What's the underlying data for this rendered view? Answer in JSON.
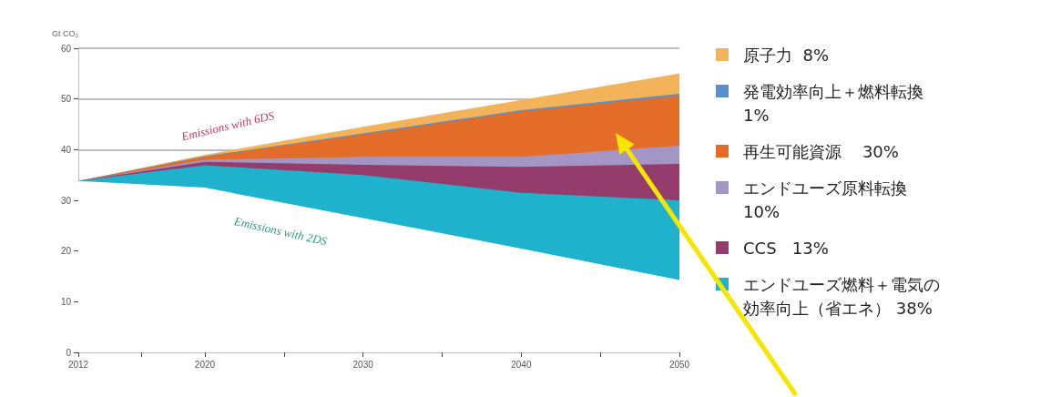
{
  "chart_data": {
    "type": "area",
    "stacked": true,
    "ylabel": "Gt CO₂",
    "x": [
      2012,
      2020,
      2030,
      2040,
      2050
    ],
    "xlim": [
      2012,
      2050
    ],
    "xticks": [
      2012,
      {
        "value": 2016,
        "label": null
      },
      2020,
      {
        "value": 2025,
        "label": null
      },
      2030,
      {
        "value": 2035,
        "label": null
      },
      2040,
      {
        "value": 2045,
        "label": null
      },
      2050
    ],
    "ylim": [
      0,
      60
    ],
    "yticks": [
      0,
      10,
      20,
      30,
      40,
      50,
      60
    ],
    "grid": "y",
    "legend": "right",
    "annotations": [
      "Emissions with 6DS",
      "Emissions with 2DS"
    ],
    "series": [
      {
        "color": "#ffffff",
        "values": [
          33.8,
          32.5,
          26.5,
          20.5,
          14.3
        ]
      },
      {
        "name": "エンドユーズ燃料＋電気の効率向上（省エネ） 38%",
        "color": "#1fb2cc",
        "values": [
          0,
          4.4,
          8.5,
          11.0,
          15.7
        ]
      },
      {
        "name": "CCS   13%",
        "color": "#943c6c",
        "values": [
          0,
          0.7,
          2.0,
          5.1,
          7.2
        ]
      },
      {
        "name": "エンドユーズ原料転換  10%",
        "color": "#a496c4",
        "values": [
          0,
          0.4,
          1.6,
          2.0,
          3.6
        ]
      },
      {
        "name": "再生可能資源    30%",
        "color": "#e36c28",
        "values": [
          0,
          0.6,
          4.4,
          8.9,
          9.8
        ]
      },
      {
        "name": "発電効率向上＋燃料転換        1%",
        "color": "#5b8fc9",
        "values": [
          0,
          0.1,
          0.2,
          0.3,
          0.4
        ]
      },
      {
        "name": "原子力  8%",
        "color": "#f2b35a",
        "values": [
          0,
          0.3,
          1.3,
          2.0,
          4.0
        ]
      }
    ]
  }
}
